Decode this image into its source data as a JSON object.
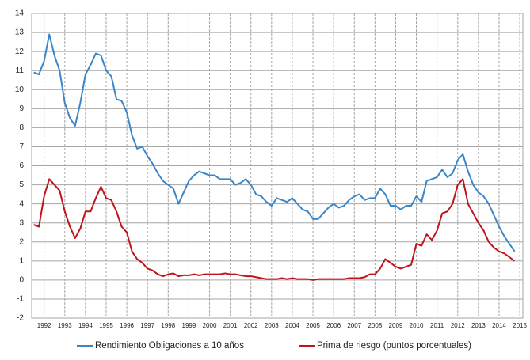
{
  "chart_data": {
    "type": "line",
    "x": [
      1991.5,
      1991.75,
      1992,
      1992.25,
      1992.5,
      1992.75,
      1993,
      1993.25,
      1993.5,
      1993.75,
      1994,
      1994.25,
      1994.5,
      1994.75,
      1995,
      1995.25,
      1995.5,
      1995.75,
      1996,
      1996.25,
      1996.5,
      1996.75,
      1997,
      1997.25,
      1997.5,
      1997.75,
      1998,
      1998.25,
      1998.5,
      1998.75,
      1999,
      1999.25,
      1999.5,
      1999.75,
      2000,
      2000.25,
      2000.5,
      2000.75,
      2001,
      2001.25,
      2001.5,
      2001.75,
      2002,
      2002.25,
      2002.5,
      2002.75,
      2003,
      2003.25,
      2003.5,
      2003.75,
      2004,
      2004.25,
      2004.5,
      2004.75,
      2005,
      2005.25,
      2005.5,
      2005.75,
      2006,
      2006.25,
      2006.5,
      2006.75,
      2007,
      2007.25,
      2007.5,
      2007.75,
      2008,
      2008.25,
      2008.5,
      2008.75,
      2009,
      2009.25,
      2009.5,
      2009.75,
      2010,
      2010.25,
      2010.5,
      2010.75,
      2011,
      2011.25,
      2011.5,
      2011.75,
      2012,
      2012.25,
      2012.5,
      2012.75,
      2013,
      2013.25,
      2013.5,
      2013.75,
      2014,
      2014.25,
      2014.5,
      2014.75
    ],
    "series": [
      {
        "name": "Rendimiento Obligaciones a 10 años",
        "color": "#3a86c8",
        "values": [
          10.9,
          10.8,
          11.5,
          12.9,
          11.8,
          11.0,
          9.3,
          8.5,
          8.1,
          9.3,
          10.8,
          11.3,
          11.9,
          11.8,
          11.0,
          10.7,
          9.5,
          9.4,
          8.8,
          7.6,
          6.9,
          7.0,
          6.5,
          6.1,
          5.6,
          5.2,
          5.0,
          4.8,
          4.0,
          4.6,
          5.2,
          5.5,
          5.7,
          5.6,
          5.5,
          5.5,
          5.3,
          5.3,
          5.3,
          5.0,
          5.1,
          5.3,
          5.0,
          4.5,
          4.4,
          4.1,
          3.9,
          4.3,
          4.2,
          4.1,
          4.3,
          4.0,
          3.7,
          3.6,
          3.2,
          3.2,
          3.5,
          3.8,
          4.0,
          3.8,
          3.9,
          4.2,
          4.4,
          4.5,
          4.2,
          4.3,
          4.3,
          4.8,
          4.5,
          3.9,
          3.9,
          3.7,
          3.9,
          3.9,
          4.4,
          4.1,
          5.2,
          5.3,
          5.4,
          5.8,
          5.4,
          5.6,
          6.3,
          6.6,
          5.7,
          5.0,
          4.6,
          4.4,
          4.0,
          3.4,
          2.8,
          2.3,
          1.9,
          1.5
        ]
      },
      {
        "name": "Prima de riesgo (puntos porcentuales)",
        "color": "#c0141c",
        "values": [
          2.9,
          2.8,
          4.4,
          5.3,
          5.0,
          4.7,
          3.6,
          2.8,
          2.2,
          2.7,
          3.6,
          3.6,
          4.3,
          4.9,
          4.3,
          4.2,
          3.6,
          2.8,
          2.5,
          1.5,
          1.1,
          0.9,
          0.6,
          0.5,
          0.3,
          0.2,
          0.3,
          0.35,
          0.2,
          0.25,
          0.25,
          0.3,
          0.25,
          0.3,
          0.3,
          0.3,
          0.3,
          0.35,
          0.3,
          0.3,
          0.25,
          0.2,
          0.2,
          0.15,
          0.1,
          0.05,
          0.05,
          0.05,
          0.1,
          0.05,
          0.1,
          0.05,
          0.05,
          0.05,
          0,
          0.05,
          0.05,
          0.05,
          0.05,
          0.05,
          0.05,
          0.1,
          0.1,
          0.1,
          0.15,
          0.3,
          0.3,
          0.6,
          1.1,
          0.9,
          0.7,
          0.6,
          0.7,
          0.8,
          1.9,
          1.8,
          2.4,
          2.1,
          2.6,
          3.5,
          3.6,
          4.0,
          5.0,
          5.3,
          4.0,
          3.5,
          3.0,
          2.6,
          2.0,
          1.7,
          1.5,
          1.4,
          1.2,
          1.0
        ]
      }
    ],
    "xlim": [
      1991.4,
      2015.15
    ],
    "xticks": [
      1992,
      1993,
      1994,
      1995,
      1996,
      1997,
      1998,
      1999,
      2000,
      2001,
      2002,
      2003,
      2004,
      2005,
      2006,
      2007,
      2008,
      2009,
      2010,
      2011,
      2012,
      2013,
      2014,
      2015
    ],
    "ylim": [
      -2,
      14
    ],
    "yticks": [
      -2,
      -1,
      0,
      1,
      2,
      3,
      4,
      5,
      6,
      7,
      8,
      9,
      10,
      11,
      12,
      13,
      14
    ],
    "grid": true,
    "legend": "bottom"
  }
}
